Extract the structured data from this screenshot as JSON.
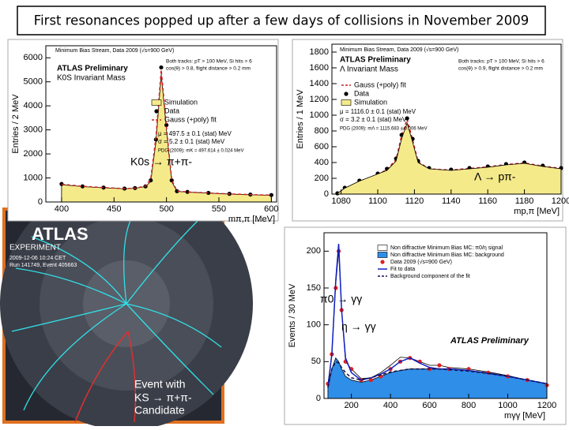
{
  "slide": {
    "title": "First resonances popped up after a few days of collisions in November 2009"
  },
  "event_display": {
    "logo": "ATLAS",
    "logo_sub": "EXPERIMENT",
    "date": "2009-12-06 10:24 CET",
    "run": "Run 141749, Event 405663",
    "caption": [
      "Event with",
      "KS → π+π-",
      "Candidate"
    ]
  },
  "chart_data": [
    {
      "type": "line",
      "title": "Minimum Bias Stream, Data 2009 (√s=900 GeV)",
      "x_label": "mπ,π [MeV]",
      "y_label": "Entries / 2 MeV",
      "annotations": [
        "ATLAS Preliminary",
        "K0S Invariant Mass",
        "Both tracks: pT > 100 MeV, Si hits > 6",
        "cos(θ) > 0.8, flight distance > 0.2 mm",
        "μ = 497.5 ± 0.1 (stat) MeV",
        "σ = 5.2 ± 0.1 (stat) MeV",
        "PDG (2009): mK = 497.614 ± 0.024 MeV",
        "K0s → π+π-"
      ],
      "x": [
        400,
        420,
        440,
        460,
        470,
        480,
        485,
        490,
        495,
        500,
        505,
        510,
        520,
        540,
        560,
        580,
        600
      ],
      "series": [
        {
          "name": "Simulation",
          "kind": "area",
          "color": "#f5ea8a",
          "values": [
            720,
            640,
            590,
            550,
            570,
            640,
            850,
            2500,
            5300,
            3000,
            850,
            440,
            410,
            370,
            330,
            300,
            280
          ]
        },
        {
          "name": "Data",
          "kind": "points",
          "color": "#000000",
          "values": [
            750,
            650,
            600,
            560,
            580,
            650,
            900,
            2600,
            5600,
            3200,
            900,
            450,
            420,
            380,
            340,
            310,
            290
          ]
        },
        {
          "name": "Gauss (+poly) fit",
          "kind": "dashed",
          "color": "#d02020",
          "values": [
            740,
            650,
            600,
            555,
            575,
            660,
            950,
            2700,
            5500,
            3100,
            920,
            460,
            415,
            375,
            335,
            305,
            285
          ]
        }
      ],
      "xlim": [
        385,
        605
      ],
      "xticks": [
        400,
        450,
        500,
        550,
        600
      ],
      "ylim": [
        0,
        6500
      ],
      "yticks": [
        0,
        1000,
        2000,
        3000,
        4000,
        5000,
        6000
      ]
    },
    {
      "type": "line",
      "title": "Minimum Bias Stream, Data 2009 (√s=900 GeV)",
      "x_label": "mp,π [MeV]",
      "y_label": "Entries / 1 MeV",
      "annotations": [
        "ATLAS Preliminary",
        "Λ Invariant Mass",
        "Both tracks: pT > 100 MeV, Si hits > 6",
        "cos(θ) > 0.9, flight distance > 0.2 mm",
        "μ = 1116.0 ± 0.1 (stat) MeV",
        "σ = 3.2 ± 0.1 (stat) MeV",
        "PDG (2009): mΛ = 1115.683 ± 0.006 MeV",
        "Λ → pπ-"
      ],
      "x": [
        1078,
        1082,
        1090,
        1100,
        1105,
        1110,
        1113,
        1116,
        1119,
        1122,
        1128,
        1140,
        1150,
        1160,
        1170,
        1180,
        1190,
        1200
      ],
      "series": [
        {
          "name": "Gauss (+poly) fit",
          "kind": "dashed",
          "color": "#d02020",
          "values": [
            5,
            70,
            160,
            250,
            310,
            440,
            740,
            950,
            690,
            410,
            320,
            305,
            325,
            345,
            375,
            395,
            355,
            325
          ]
        },
        {
          "name": "Data",
          "kind": "points",
          "color": "#000000",
          "values": [
            10,
            80,
            170,
            260,
            320,
            450,
            750,
            960,
            700,
            420,
            330,
            310,
            330,
            350,
            380,
            400,
            360,
            330
          ]
        },
        {
          "name": "Simulation",
          "kind": "area",
          "color": "#f5ea8a",
          "values": [
            8,
            75,
            165,
            255,
            300,
            420,
            700,
            900,
            660,
            400,
            320,
            300,
            320,
            340,
            370,
            390,
            350,
            320
          ]
        }
      ],
      "xlim": [
        1075,
        1200
      ],
      "xticks": [
        1080,
        1100,
        1120,
        1140,
        1160,
        1180,
        1200
      ],
      "ylim": [
        0,
        1900
      ],
      "yticks": [
        0,
        200,
        400,
        600,
        800,
        1000,
        1200,
        1400,
        1600,
        1800
      ]
    },
    {
      "type": "line",
      "title": "ATLAS Preliminary",
      "x_label": "mγγ [MeV]",
      "y_label": "Events / 30 MeV",
      "annotations": [
        "π0 → γγ",
        "η → γγ"
      ],
      "x": [
        80,
        100,
        120,
        135,
        150,
        170,
        200,
        250,
        300,
        350,
        400,
        450,
        500,
        550,
        600,
        650,
        700,
        800,
        900,
        1000,
        1100,
        1200
      ],
      "series": [
        {
          "name": "Non diffractive Minimum Bias MC: π0/η signal",
          "kind": "step",
          "color": "#ffffff",
          "values": [
            20,
            60,
            155,
            200,
            120,
            50,
            40,
            27,
            28,
            35,
            45,
            56,
            55,
            50,
            45,
            45,
            42,
            40,
            36,
            31,
            25,
            20
          ]
        },
        {
          "name": "Non diffractive Minimum Bias MC: background",
          "kind": "area",
          "color": "#2f8ee8",
          "values": [
            15,
            40,
            55,
            50,
            40,
            30,
            25,
            22,
            25,
            30,
            35,
            38,
            40,
            40,
            40,
            40,
            40,
            38,
            35,
            30,
            25,
            20
          ]
        },
        {
          "name": "Data 2009 (√s=900 GeV)",
          "kind": "points",
          "color": "#e02020",
          "values": [
            20,
            60,
            150,
            200,
            120,
            50,
            40,
            25,
            25,
            30,
            40,
            50,
            55,
            50,
            40,
            45,
            40,
            40,
            35,
            30,
            25,
            18
          ]
        },
        {
          "name": "Fit to data",
          "kind": "line",
          "color": "#1020c0",
          "values": [
            15,
            60,
            160,
            210,
            120,
            55,
            35,
            25,
            28,
            33,
            40,
            50,
            55,
            48,
            42,
            40,
            40,
            38,
            34,
            30,
            25,
            20
          ]
        },
        {
          "name": "Background component of the fit",
          "kind": "dashed",
          "color": "#101050",
          "values": [
            15,
            40,
            50,
            48,
            42,
            35,
            28,
            25,
            28,
            32,
            36,
            38,
            40,
            40,
            40,
            40,
            39,
            37,
            34,
            30,
            25,
            20
          ]
        }
      ],
      "xlim": [
        60,
        1200
      ],
      "xticks": [
        200,
        400,
        600,
        800,
        1000,
        1200
      ],
      "ylim": [
        0,
        225
      ],
      "yticks": [
        0,
        50,
        100,
        150,
        200
      ]
    }
  ]
}
